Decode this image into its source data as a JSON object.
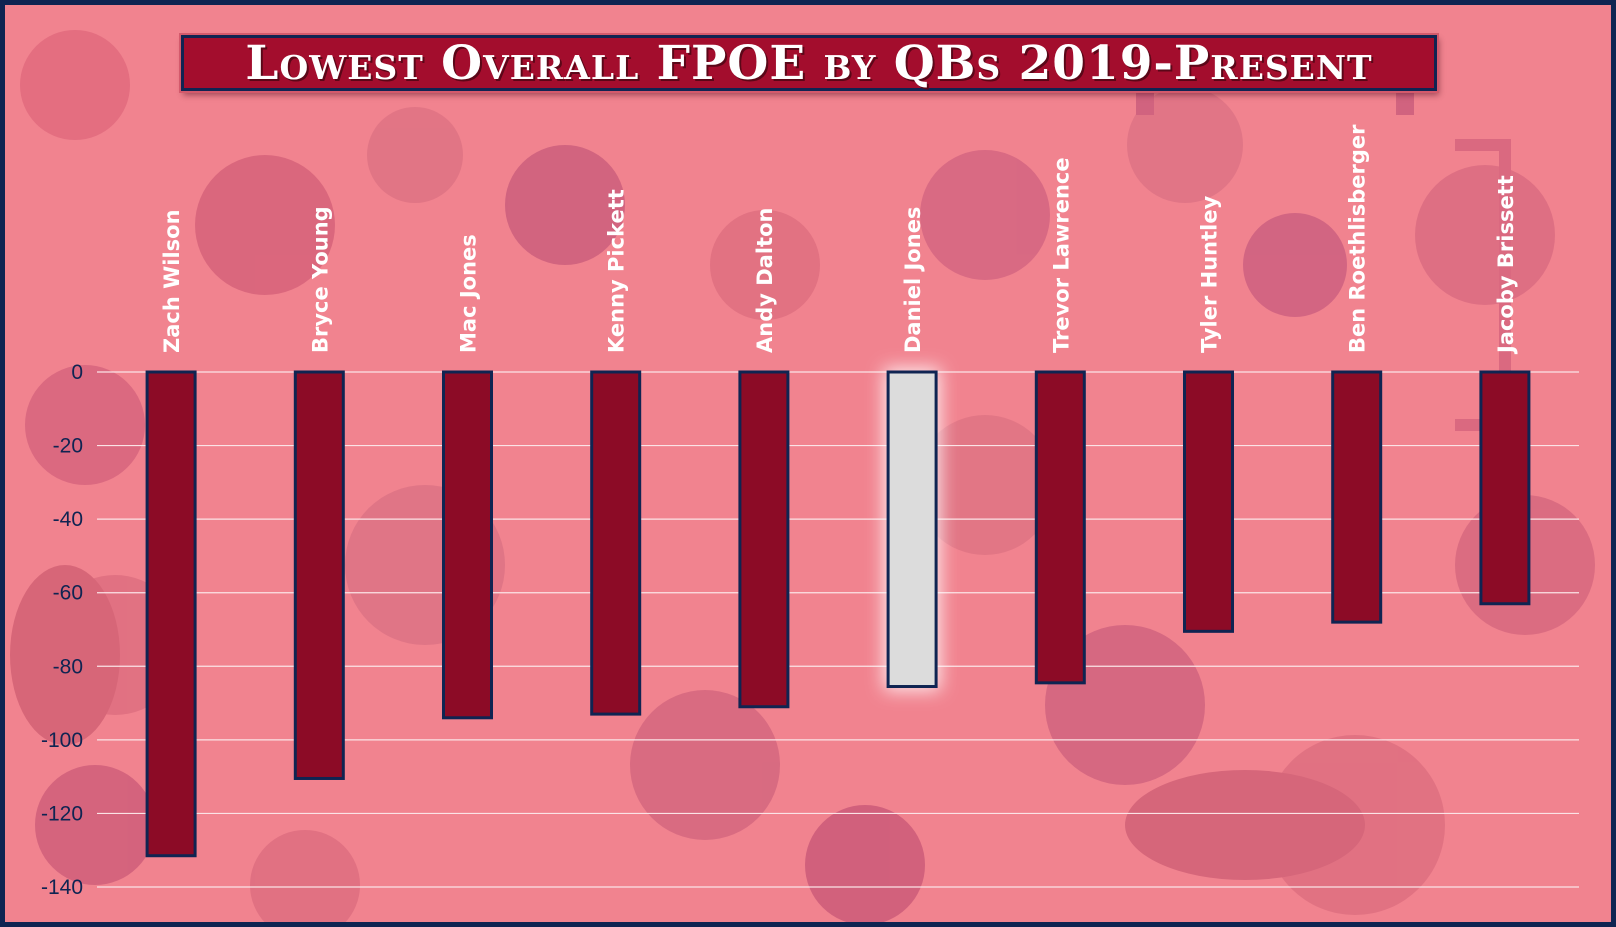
{
  "colors": {
    "bar": "#8c0b26",
    "bar_outline": "#0f2452",
    "highlight_bar": "#dcdcdc",
    "gridline": "#fbe3e6",
    "frame": "#0f2452",
    "title_bg": "#a30d2d"
  },
  "chart_data": {
    "type": "bar",
    "title": "Lowest Overall FPOE by QBs 2019-Present",
    "categories": [
      "Zach Wilson",
      "Bryce Young",
      "Mac Jones",
      "Kenny Pickett",
      "Andy Dalton",
      "Daniel Jones",
      "Trevor Lawrence",
      "Tyler Huntley",
      "Ben Roethlisberger",
      "Jacoby Brissett"
    ],
    "values": [
      -131.5,
      -110.5,
      -94,
      -93,
      -91,
      -85.5,
      -84.5,
      -70.5,
      -68,
      -63
    ],
    "highlight": "Daniel Jones",
    "ylim": [
      -140,
      0
    ],
    "yticks": [
      0,
      -20,
      -40,
      -60,
      -80,
      -100,
      -120,
      -140
    ],
    "category_label_position": "top, rotated",
    "grid": true,
    "legend": "none"
  }
}
